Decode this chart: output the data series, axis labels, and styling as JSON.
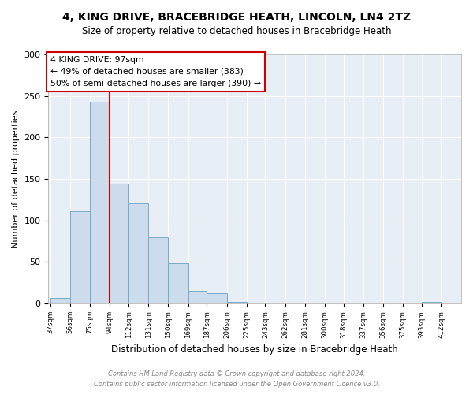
{
  "title": "4, KING DRIVE, BRACEBRIDGE HEATH, LINCOLN, LN4 2TZ",
  "subtitle": "Size of property relative to detached houses in Bracebridge Heath",
  "xlabel": "Distribution of detached houses by size in Bracebridge Heath",
  "ylabel": "Number of detached properties",
  "bar_color": "#ccdcec",
  "bar_edge_color": "#7aaac8",
  "fig_bg_color": "#ffffff",
  "ax_bg_color": "#e8eef5",
  "annotation_border_color": "#cc0000",
  "vline_color": "#cc0000",
  "bins": [
    37,
    56,
    75,
    94,
    112,
    131,
    150,
    169,
    187,
    206,
    225,
    243,
    262,
    281,
    300,
    318,
    337,
    356,
    375,
    393,
    412
  ],
  "heights": [
    6,
    111,
    243,
    144,
    120,
    80,
    48,
    15,
    12,
    2,
    0,
    0,
    0,
    0,
    0,
    0,
    0,
    0,
    0,
    2
  ],
  "tick_labels": [
    "37sqm",
    "56sqm",
    "75sqm",
    "94sqm",
    "112sqm",
    "131sqm",
    "150sqm",
    "169sqm",
    "187sqm",
    "206sqm",
    "225sqm",
    "243sqm",
    "262sqm",
    "281sqm",
    "300sqm",
    "318sqm",
    "337sqm",
    "356sqm",
    "375sqm",
    "393sqm",
    "412sqm"
  ],
  "vline_x": 94,
  "annotation_text_line1": "4 KING DRIVE: 97sqm",
  "annotation_text_line2": "← 49% of detached houses are smaller (383)",
  "annotation_text_line3": "50% of semi-detached houses are larger (390) →",
  "ylim": [
    0,
    300
  ],
  "yticks": [
    0,
    50,
    100,
    150,
    200,
    250,
    300
  ],
  "footer_line1": "Contains HM Land Registry data © Crown copyright and database right 2024.",
  "footer_line2": "Contains public sector information licensed under the Open Government Licence v3.0."
}
